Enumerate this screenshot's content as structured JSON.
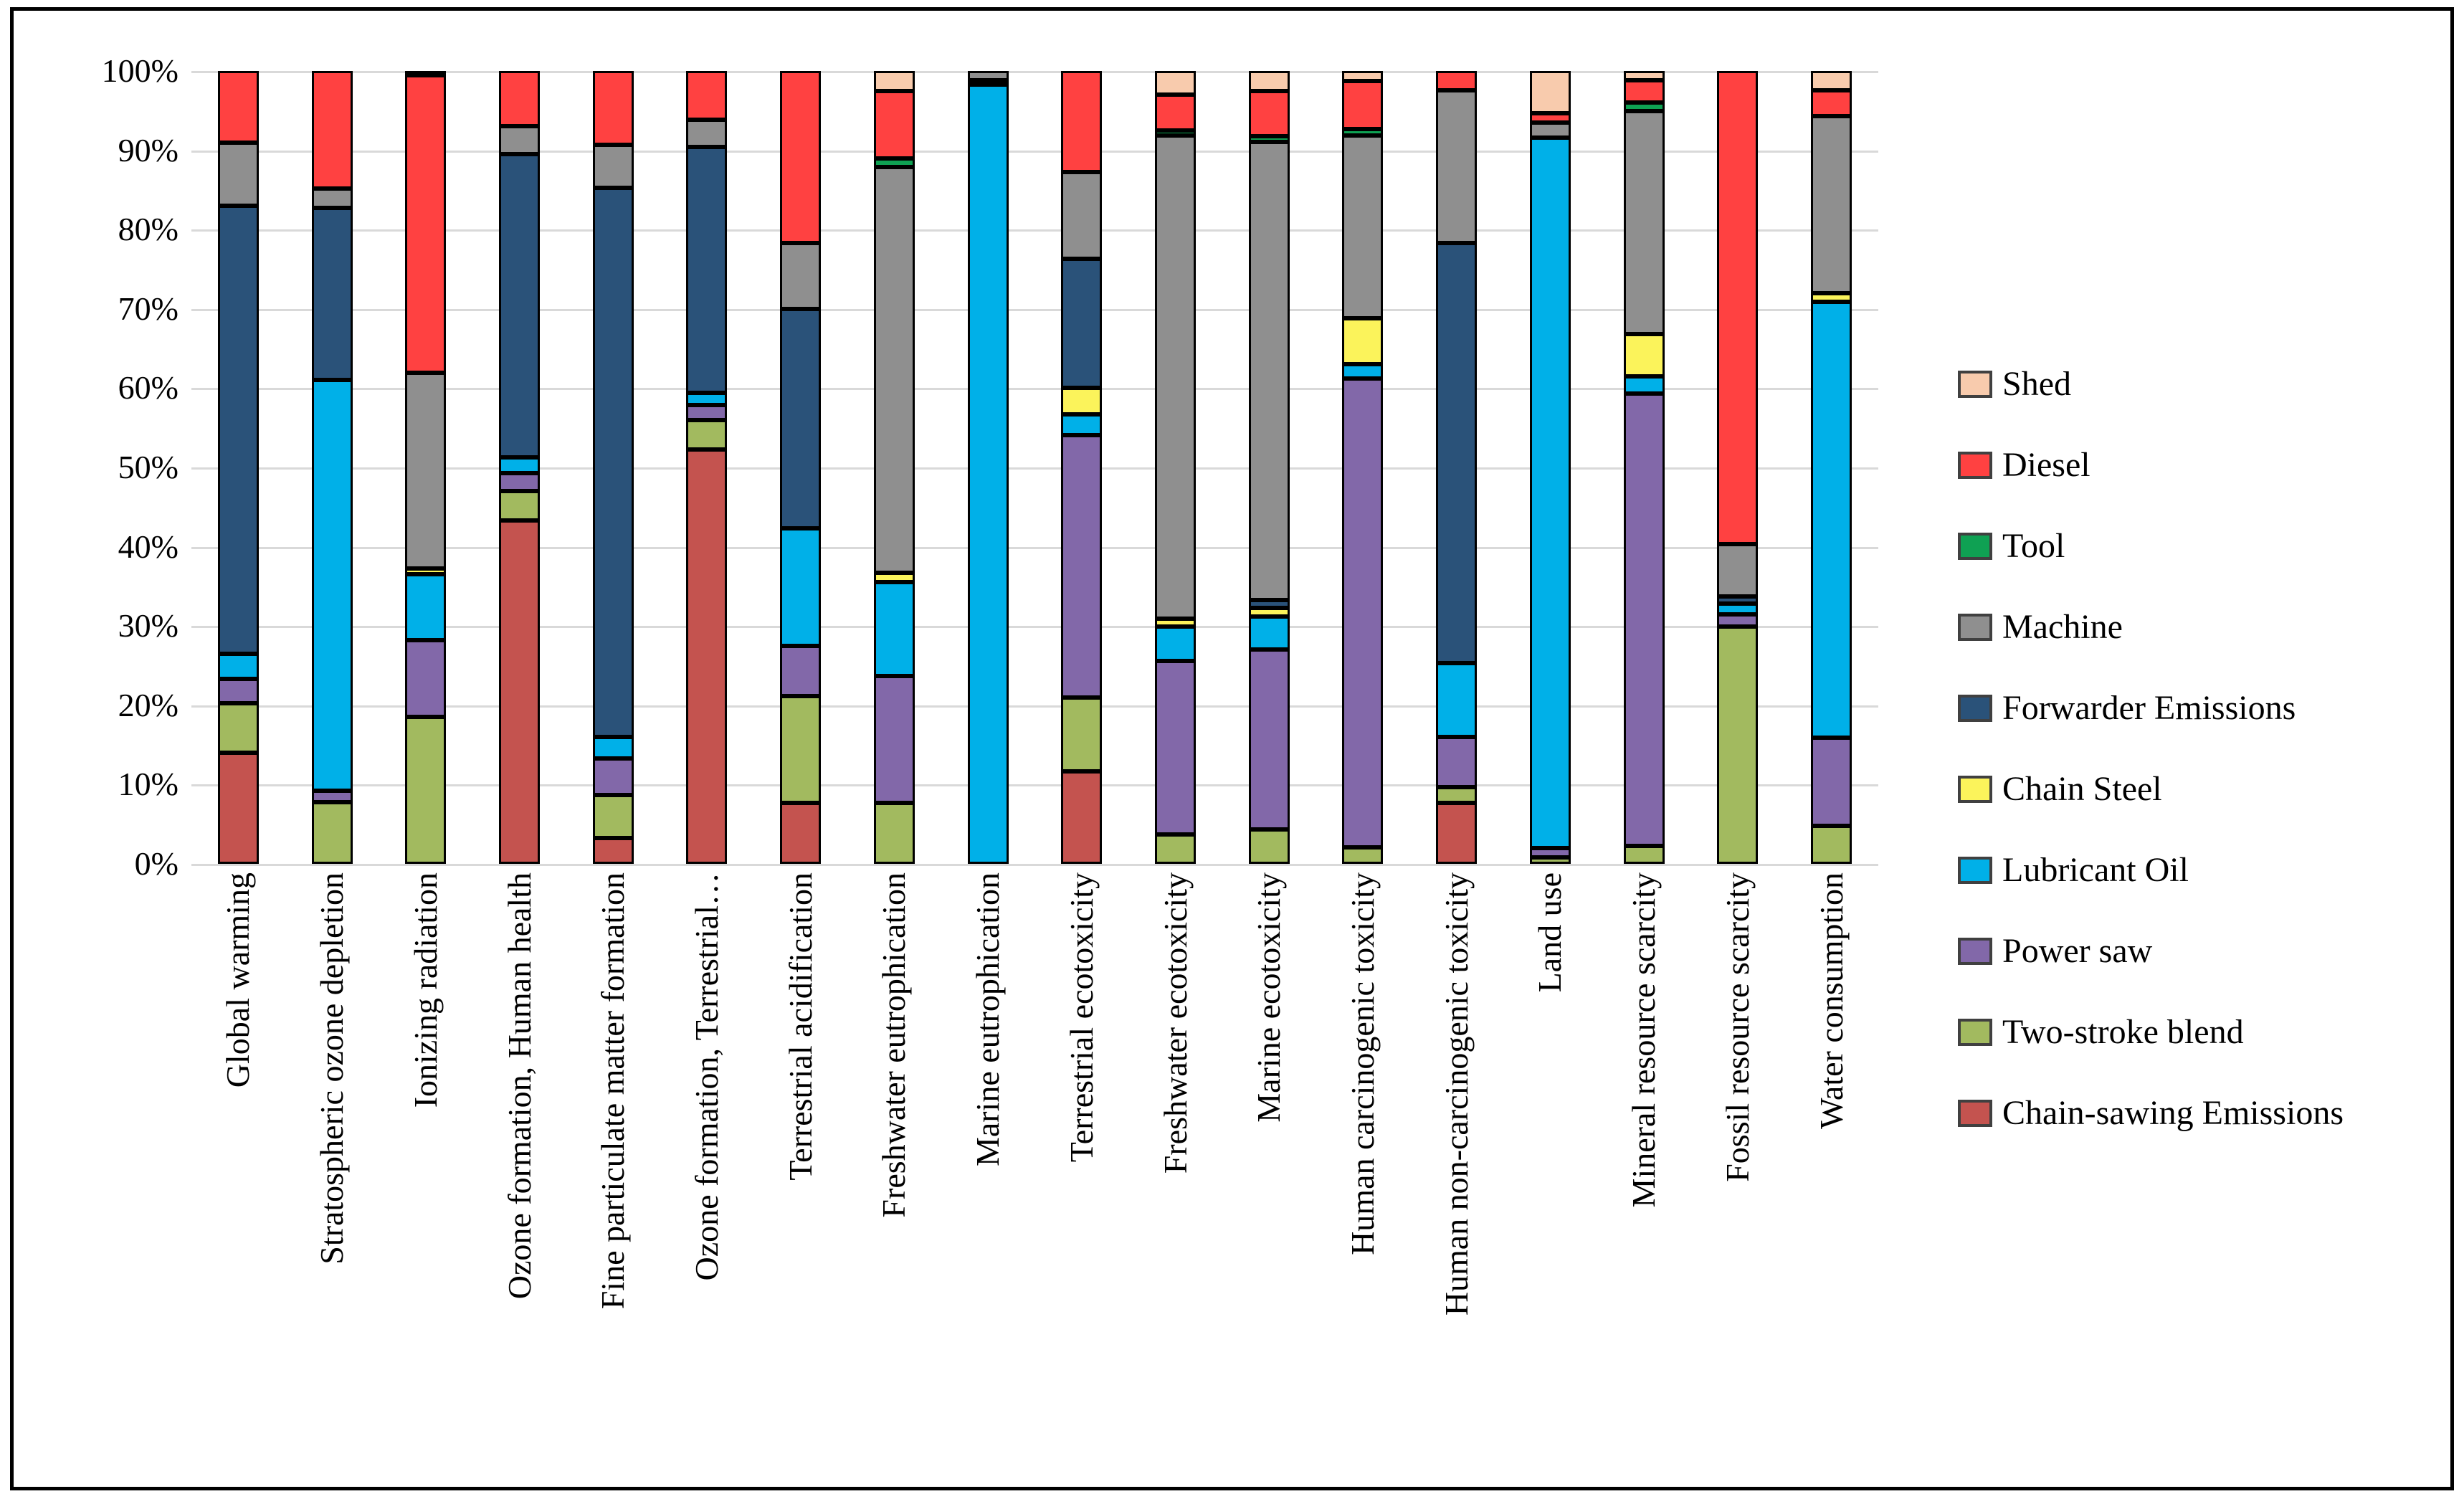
{
  "y_axis": {
    "ticks": [
      "100%",
      "90%",
      "80%",
      "70%",
      "60%",
      "50%",
      "40%",
      "30%",
      "20%",
      "10%",
      "0%"
    ]
  },
  "chart_data": {
    "type": "bar",
    "stacked": true,
    "percent_stacked": true,
    "unit": "%",
    "ylim": [
      0,
      100
    ],
    "ytick_step": 10,
    "grid": true,
    "gridline_color": "#D9D9D9",
    "legend_position": "right",
    "categories": [
      "Global warming",
      "Stratospheric ozone depletion",
      "Ionizing radiation",
      "Ozone formation, Human health",
      "Fine particulate matter formation",
      "Ozone formation, Terrestrial…",
      "Terrestrial acidification",
      "Freshwater eutrophication",
      "Marine eutrophication",
      "Terrestrial ecotoxicity",
      "Freshwater ecotoxicity",
      "Marine ecotoxicity",
      "Human carcinogenic toxicity",
      "Human non-carcinogenic toxicity",
      "Land use",
      "Mineral resource scarcity",
      "Fossil resource scarcity",
      "Water consumption"
    ],
    "series": [
      {
        "name": "Chain-sawing Emissions",
        "color": "#C4534F",
        "values": [
          14,
          0,
          0,
          43.3,
          3.3,
          52.3,
          7.7,
          0,
          0,
          11.7,
          0,
          0,
          0,
          7.7,
          0,
          0,
          0,
          0
        ]
      },
      {
        "name": "Two-stroke blend",
        "color": "#A2BA5F",
        "values": [
          6.3,
          7.8,
          18.5,
          3.7,
          5.4,
          3.7,
          13.5,
          7.7,
          0,
          9.3,
          3.7,
          4.3,
          2.1,
          2,
          0.8,
          2.3,
          29.9,
          4.8
        ]
      },
      {
        "name": "Power saw",
        "color": "#8268A9",
        "values": [
          3,
          1.4,
          9.7,
          2.3,
          4.6,
          1.9,
          6.3,
          16,
          0,
          33.1,
          21.9,
          22.7,
          59.1,
          6.3,
          1.2,
          57,
          1.6,
          11.1
        ]
      },
      {
        "name": "Lubricant Oil",
        "color": "#00B0E8",
        "values": [
          3.2,
          51.8,
          8.3,
          2,
          2.7,
          1.5,
          14.8,
          11.8,
          98.5,
          2.6,
          4.3,
          4.2,
          1.8,
          9.3,
          89.6,
          2.2,
          1.3,
          55
        ]
      },
      {
        "name": "Chain Steel",
        "color": "#FBF35B",
        "values": [
          0,
          0,
          0.8,
          0,
          0,
          0,
          0,
          1.2,
          0,
          3.3,
          1,
          1.1,
          5.8,
          0,
          0,
          5.3,
          0,
          1.1
        ]
      },
      {
        "name": "Forwarder Emissions",
        "color": "#2A5279",
        "values": [
          56.5,
          21.7,
          0,
          38.2,
          69.3,
          31,
          27.7,
          0,
          0.3,
          16.3,
          0,
          1,
          0,
          53,
          0,
          0,
          0.9,
          0
        ]
      },
      {
        "name": "Machine",
        "color": "#8F8F8F",
        "values": [
          8,
          2.5,
          24.7,
          3.5,
          5.4,
          3.5,
          8.3,
          51.2,
          1.2,
          11,
          61,
          57.8,
          23.1,
          19.3,
          1.9,
          28.1,
          6.6,
          22.3
        ]
      },
      {
        "name": "Tool",
        "color": "#0FA153",
        "values": [
          0,
          0,
          0,
          0,
          0,
          0,
          0,
          1.1,
          0,
          0,
          0.6,
          0.7,
          0.8,
          0,
          0,
          1.1,
          0,
          0
        ]
      },
      {
        "name": "Diesel",
        "color": "#FF4141",
        "values": [
          9,
          14.8,
          37.5,
          7,
          9.3,
          6.1,
          21.7,
          8.5,
          0,
          12.7,
          4.5,
          5.7,
          6,
          2.4,
          1.2,
          2.8,
          59.7,
          3.3
        ]
      },
      {
        "name": "Shed",
        "color": "#F8CBAD",
        "values": [
          0,
          0,
          0.5,
          0,
          0,
          0,
          0,
          2.5,
          0,
          0,
          3,
          2.5,
          1.3,
          0,
          5.3,
          1.2,
          0,
          2.4
        ]
      }
    ],
    "legend_order_top_to_bottom": [
      "Shed",
      "Diesel",
      "Tool",
      "Machine",
      "Forwarder Emissions",
      "Chain Steel",
      "Lubricant Oil",
      "Power saw",
      "Two-stroke blend",
      "Chain-sawing Emissions"
    ]
  }
}
